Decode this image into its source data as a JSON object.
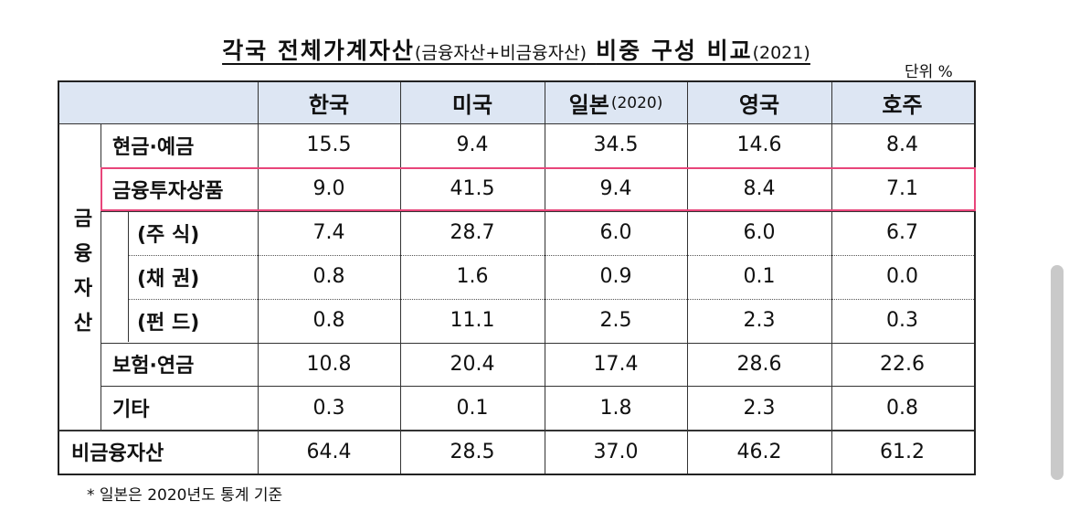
{
  "title": {
    "main": "각국 전체가계자산",
    "detail": "(금융자산+비금융자산)",
    "main2": "비중 구성 비교",
    "year": "(2021)"
  },
  "unit": "단위 %",
  "table": {
    "group": "금융자산",
    "columns": [
      {
        "label": "한국"
      },
      {
        "label": "미국"
      },
      {
        "label": "일본",
        "note": "(2020)"
      },
      {
        "label": "영국"
      },
      {
        "label": "호주"
      }
    ],
    "rows": [
      {
        "label": "현금·예금",
        "values": [
          "15.5",
          "9.4",
          "34.5",
          "14.6",
          "8.4"
        ]
      },
      {
        "label": "금융투자상품",
        "values": [
          "9.0",
          "41.5",
          "9.4",
          "8.4",
          "7.1"
        ]
      },
      {
        "label": "(주 식)",
        "values": [
          "7.4",
          "28.7",
          "6.0",
          "6.0",
          "6.7"
        ]
      },
      {
        "label": "(채 권)",
        "values": [
          "0.8",
          "1.6",
          "0.9",
          "0.1",
          "0.0"
        ]
      },
      {
        "label": "(펀 드)",
        "values": [
          "0.8",
          "11.1",
          "2.5",
          "2.3",
          "0.3"
        ]
      },
      {
        "label": "보험·연금",
        "values": [
          "10.8",
          "20.4",
          "17.4",
          "28.6",
          "22.6"
        ]
      },
      {
        "label": "기타",
        "values": [
          "0.3",
          "0.1",
          "1.8",
          "2.3",
          "0.8"
        ]
      },
      {
        "label": "비금융자산",
        "values": [
          "64.4",
          "28.5",
          "37.0",
          "46.2",
          "61.2"
        ]
      }
    ]
  },
  "footnote": "* 일본은 2020년도 통계 기준"
}
